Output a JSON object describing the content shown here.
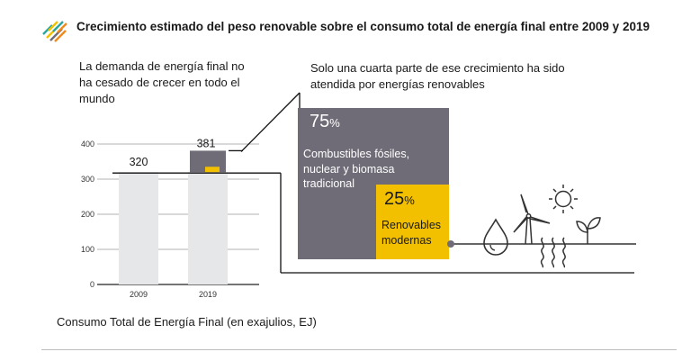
{
  "header": {
    "title": "Crecimiento estimado del peso renovable sobre el consumo total de energía final entre 2009 y 2019",
    "logo_icon": "hatched-logo-icon"
  },
  "notes": {
    "left": "La demanda de energía final no ha cesado de crecer en todo el mundo",
    "right": "Solo una cuarta parte de ese crecimiento ha sido atendida por energías renovables"
  },
  "breakdown": {
    "fossil_pct": "75",
    "fossil_label": "Combustibles fósiles, nuclear y biomasa tradicional",
    "renewable_pct": "25",
    "renewable_label": "Renovables modernas",
    "pct_sign": "%",
    "colors": {
      "fossil": "#6f6c77",
      "renewable": "#f3c000"
    }
  },
  "icons": [
    "water-drop-icon",
    "wind-turbine-icon",
    "sun-icon",
    "sprout-icon",
    "heat-waves-icon"
  ],
  "footer": {
    "caption": "Consumo Total de Energía Final (en exajulios, EJ)"
  },
  "chart_data": {
    "type": "bar",
    "categories": [
      "2009",
      "2019"
    ],
    "values": [
      320,
      381
    ],
    "value_labels": [
      "320",
      "381"
    ],
    "ylim": [
      0,
      400
    ],
    "yticks": [
      0,
      100,
      200,
      300,
      400
    ],
    "increment_split": {
      "fossil_nuclear_traditional_pct": 75,
      "modern_renewables_pct": 25
    },
    "grid": true,
    "colors": {
      "bar": "#e6e7e9",
      "increment_gray": "#6f6c77",
      "increment_yellow": "#f3c000"
    }
  }
}
